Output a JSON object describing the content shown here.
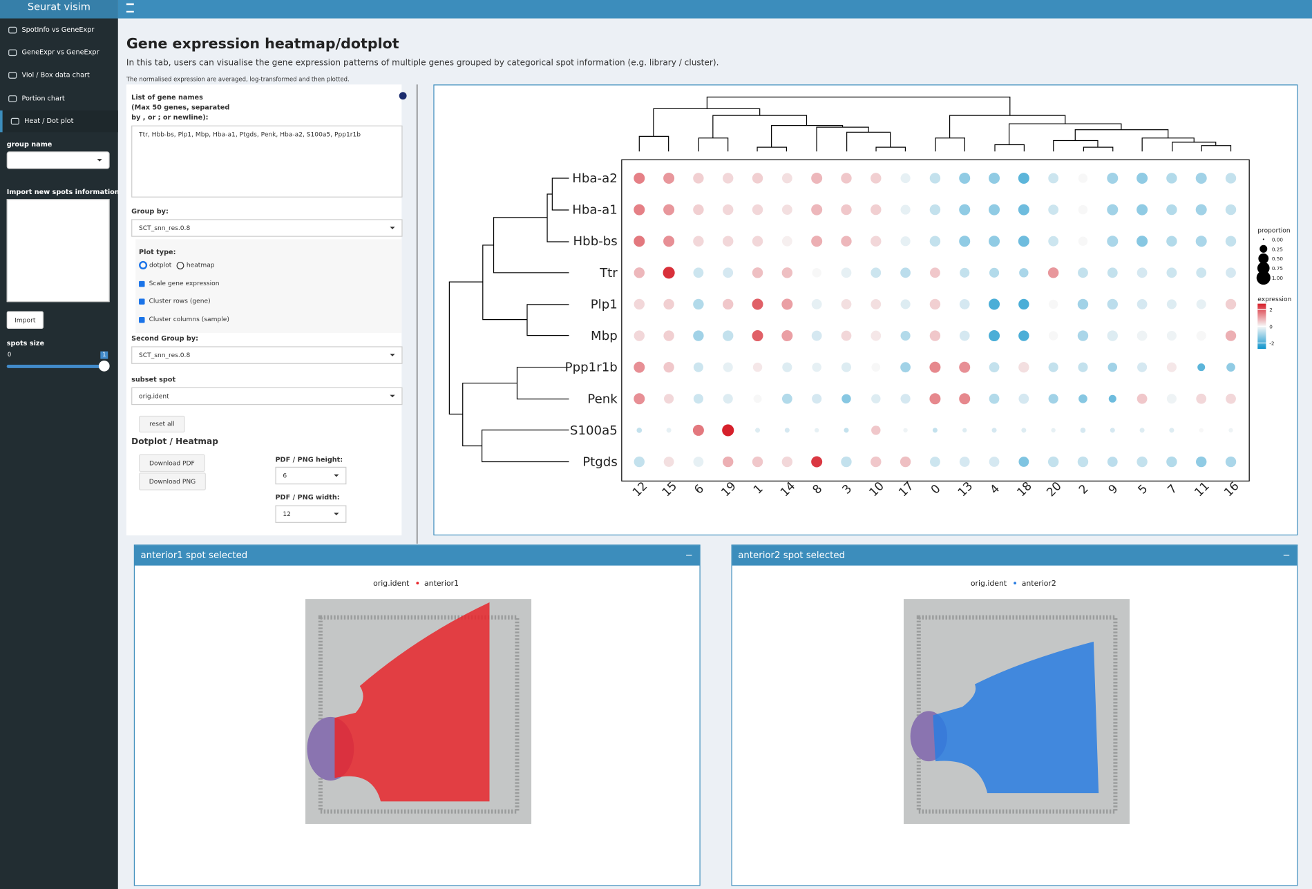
{
  "header": {
    "app_title": "Seurat visim"
  },
  "sidebar": {
    "menu": [
      "SpotInfo vs GeneExpr",
      "GeneExpr vs GeneExpr",
      "Viol / Box data chart",
      "Portion chart",
      "Heat / Dot plot"
    ],
    "group_name_label": "group name",
    "import_label": "Import new spots information",
    "import_button": "Import",
    "spots_size_label": "spots size",
    "slider_min": 0,
    "slider_value": 1
  },
  "page": {
    "title": "Gene expression heatmap/dotplot",
    "description": "In this tab, users can visualise the gene expression patterns of multiple genes grouped by categorical spot information (e.g. library / cluster).",
    "note": "The normalised expression are averaged, log-transformed and then plotted."
  },
  "form": {
    "gene_list_label": [
      "List of gene names",
      "(Max 50 genes, separated",
      "by , or ; or newline):"
    ],
    "gene_list_value": "Ttr, Hbb-bs, Plp1, Mbp, Hba-a1, Ptgds, Penk, Hba-a2, S100a5, Ppp1r1b",
    "group_by_label": "Group by:",
    "group_by_value": "SCT_snn_res.0.8",
    "plot_type_label": "Plot type:",
    "plot_type_options": [
      "dotplot",
      "heatmap"
    ],
    "checkboxes": [
      "Scale gene expression",
      "Cluster rows (gene)",
      "Cluster columns (sample)"
    ],
    "second_group_label": "Second Group by:",
    "second_group_value": "SCT_snn_res.0.8",
    "subset_label": "subset spot",
    "subset_value": "orig.ident",
    "reset_button": "reset all",
    "download_title": "Dotplot / Heatmap",
    "download_pdf": "Download PDF",
    "download_png": "Download PNG",
    "height_label": "PDF / PNG height:",
    "height_value": 6,
    "width_label": "PDF / PNG width:",
    "width_value": 12
  },
  "chart_data": {
    "type": "dotplot",
    "categories": [
      "12",
      "15",
      "6",
      "19",
      "1",
      "14",
      "8",
      "3",
      "10",
      "17",
      "0",
      "13",
      "4",
      "18",
      "20",
      "2",
      "9",
      "5",
      "7",
      "11",
      "16"
    ],
    "genes": [
      "Hba-a2",
      "Hba-a1",
      "Hbb-bs",
      "Ttr",
      "Plp1",
      "Mbp",
      "Ppp1r1b",
      "Penk",
      "S100a5",
      "Ptgds"
    ],
    "expression": [
      [
        1.5,
        1.2,
        0.5,
        0.4,
        0.5,
        0.3,
        0.8,
        0.6,
        0.5,
        -0.2,
        -0.6,
        -1.2,
        -1.2,
        -1.8,
        -0.5,
        0,
        -1,
        -1.2,
        -0.8,
        -1,
        -0.6
      ],
      [
        1.5,
        1.2,
        0.5,
        0.4,
        0.4,
        0.3,
        0.8,
        0.6,
        0.5,
        -0.2,
        -0.6,
        -1.2,
        -1.2,
        -1.6,
        -0.5,
        0,
        -1,
        -1.2,
        -0.8,
        -1,
        -0.6
      ],
      [
        1.6,
        1.3,
        0.4,
        0.4,
        0.4,
        0.1,
        0.9,
        0.8,
        0.4,
        -0.2,
        -0.6,
        -1.2,
        -1.2,
        -1.6,
        -0.5,
        0,
        -0.9,
        -1.3,
        -0.8,
        -0.9,
        -0.6
      ],
      [
        0.8,
        2.5,
        -0.5,
        -0.4,
        0.7,
        0.7,
        0,
        -0.2,
        -0.5,
        -0.7,
        0.6,
        -0.6,
        -0.8,
        -0.9,
        1.2,
        -0.6,
        -0.6,
        -0.4,
        -0.5,
        -0.5,
        -0.4
      ],
      [
        0.4,
        0.5,
        -0.8,
        0.6,
        1.9,
        1.1,
        -0.2,
        0.3,
        0.3,
        -0.3,
        0.5,
        -0.4,
        -2,
        -2,
        0,
        -1,
        -0.7,
        -0.4,
        -0.3,
        -0.2,
        0.5
      ],
      [
        0.4,
        0.5,
        -1,
        -0.6,
        1.9,
        1.1,
        -0.4,
        0.4,
        0.2,
        -0.8,
        0.6,
        -0.4,
        -2,
        -2,
        0,
        -0.9,
        -0.3,
        -0.1,
        -0.1,
        0,
        0.9
      ],
      [
        1.3,
        0.6,
        -0.5,
        -0.2,
        0.2,
        -0.3,
        -0.2,
        -0.3,
        0,
        -1,
        1.4,
        1.3,
        -0.6,
        0.3,
        -0.6,
        -0.6,
        -1,
        -0.4,
        0.2,
        -1.8,
        -1.2
      ],
      [
        1.3,
        0.4,
        -0.5,
        -0.3,
        0,
        -0.8,
        -0.4,
        -1.3,
        -0.3,
        -0.4,
        1.4,
        1.4,
        -0.8,
        -0.4,
        -1,
        -1.3,
        -1.6,
        0.6,
        -0.1,
        0.4,
        0.4
      ],
      [
        -0.6,
        -0.2,
        1.6,
        2.7,
        -0.3,
        -0.4,
        -0.2,
        -0.6,
        0.6,
        -0.1,
        -0.6,
        -0.3,
        -0.4,
        -0.3,
        -0.2,
        -0.4,
        -0.4,
        -0.3,
        -0.3,
        0,
        -0.1
      ],
      [
        -0.6,
        0.3,
        -0.2,
        0.9,
        0.6,
        0.4,
        2.4,
        -0.6,
        0.6,
        0.7,
        -0.5,
        -0.4,
        -0.4,
        -1.4,
        -0.6,
        -0.6,
        -0.7,
        -0.6,
        -0.8,
        -1.2,
        -0.9
      ]
    ],
    "proportion": [
      [
        0.6,
        0.6,
        0.55,
        0.55,
        0.55,
        0.5,
        0.6,
        0.55,
        0.55,
        0.45,
        0.55,
        0.6,
        0.6,
        0.6,
        0.5,
        0.4,
        0.6,
        0.6,
        0.55,
        0.6,
        0.55
      ],
      [
        0.6,
        0.6,
        0.55,
        0.55,
        0.55,
        0.5,
        0.6,
        0.55,
        0.55,
        0.45,
        0.55,
        0.6,
        0.6,
        0.6,
        0.5,
        0.4,
        0.6,
        0.6,
        0.55,
        0.6,
        0.55
      ],
      [
        0.6,
        0.6,
        0.55,
        0.55,
        0.55,
        0.5,
        0.6,
        0.55,
        0.55,
        0.45,
        0.55,
        0.6,
        0.6,
        0.6,
        0.5,
        0.4,
        0.6,
        0.6,
        0.55,
        0.6,
        0.55
      ],
      [
        0.55,
        0.7,
        0.5,
        0.5,
        0.55,
        0.55,
        0.4,
        0.5,
        0.5,
        0.5,
        0.5,
        0.45,
        0.45,
        0.4,
        0.55,
        0.5,
        0.5,
        0.5,
        0.5,
        0.5,
        0.5
      ],
      [
        0.55,
        0.55,
        0.55,
        0.55,
        0.6,
        0.6,
        0.5,
        0.5,
        0.5,
        0.45,
        0.55,
        0.5,
        0.6,
        0.55,
        0.4,
        0.55,
        0.55,
        0.5,
        0.45,
        0.45,
        0.55
      ],
      [
        0.55,
        0.55,
        0.55,
        0.55,
        0.6,
        0.6,
        0.5,
        0.5,
        0.5,
        0.45,
        0.55,
        0.5,
        0.6,
        0.55,
        0.4,
        0.55,
        0.55,
        0.5,
        0.45,
        0.45,
        0.55
      ],
      [
        0.6,
        0.55,
        0.45,
        0.45,
        0.4,
        0.45,
        0.4,
        0.45,
        0.35,
        0.5,
        0.6,
        0.6,
        0.5,
        0.55,
        0.45,
        0.45,
        0.4,
        0.45,
        0.45,
        0.25,
        0.35
      ],
      [
        0.6,
        0.45,
        0.45,
        0.45,
        0.3,
        0.5,
        0.45,
        0.4,
        0.4,
        0.45,
        0.6,
        0.6,
        0.5,
        0.5,
        0.45,
        0.35,
        0.25,
        0.5,
        0.45,
        0.5,
        0.5
      ],
      [
        0.1,
        0.08,
        0.6,
        0.7,
        0.08,
        0.08,
        0.06,
        0.08,
        0.4,
        0.06,
        0.08,
        0.06,
        0.08,
        0.08,
        0.06,
        0.1,
        0.08,
        0.08,
        0.08,
        0.06,
        0.06
      ],
      [
        0.55,
        0.5,
        0.5,
        0.55,
        0.55,
        0.55,
        0.6,
        0.55,
        0.55,
        0.55,
        0.5,
        0.5,
        0.5,
        0.5,
        0.55,
        0.55,
        0.5,
        0.55,
        0.55,
        0.55,
        0.55
      ]
    ],
    "size_title": "proportion",
    "size_ticks": [
      {
        "value": 0,
        "label": "0.00"
      },
      {
        "value": 0.25,
        "label": "0.25"
      },
      {
        "value": 0.5,
        "label": "0.50"
      },
      {
        "value": 0.75,
        "label": "0.75"
      },
      {
        "value": 1,
        "label": "1.00"
      }
    ],
    "color_title": "expression",
    "colorlim": [
      -2.7,
      2.7
    ],
    "color_ticks": [
      2,
      0,
      -2
    ],
    "low_color": "#0f94cc",
    "mid_color": "#f7f7f7",
    "high_color": "#d6202b"
  },
  "panels": [
    {
      "title": "anterior1 spot selected",
      "legend_title": "orig.ident",
      "legend_label": "anterior1",
      "color": "#e8262b"
    },
    {
      "title": "anterior2 spot selected",
      "legend_title": "orig.ident",
      "legend_label": "anterior2",
      "color": "#2a7de1"
    }
  ]
}
